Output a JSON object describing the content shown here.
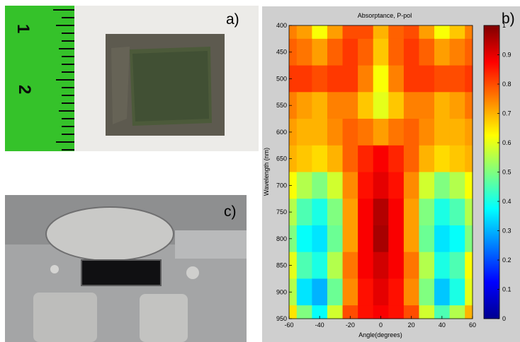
{
  "panels": {
    "a": {
      "label": "a)",
      "ruler_numbers": [
        "1",
        "2"
      ]
    },
    "b": {
      "label": "b)"
    },
    "c": {
      "label": "c)"
    }
  },
  "chart_data": {
    "type": "heatmap",
    "title": "Absorptance, P-pol",
    "xlabel": "Angle(degrees)",
    "ylabel": "Wavelength (nm)",
    "xlim": [
      -60,
      60
    ],
    "ylim": [
      400,
      950
    ],
    "x_ticks": [
      -60,
      -40,
      -20,
      0,
      20,
      40,
      60
    ],
    "y_ticks": [
      400,
      450,
      500,
      550,
      600,
      650,
      700,
      750,
      800,
      850,
      900,
      950
    ],
    "y_reversed": true,
    "colormap": "jet",
    "colorbar": {
      "range": [
        0,
        1
      ],
      "ticks": [
        "0",
        "0.1",
        "0.2",
        "0.3",
        "0.4",
        "0.5",
        "0.6",
        "0.7",
        "0.8",
        "0.9",
        "1"
      ]
    },
    "angles": [
      -60,
      -50,
      -40,
      -30,
      -20,
      -10,
      0,
      10,
      20,
      30,
      40,
      50,
      60
    ],
    "wavelengths": [
      400,
      450,
      500,
      550,
      600,
      650,
      700,
      750,
      800,
      850,
      900,
      950
    ],
    "values": [
      [
        0.75,
        0.72,
        0.62,
        0.72,
        0.8,
        0.8,
        0.7,
        0.78,
        0.8,
        0.72,
        0.62,
        0.68,
        0.75
      ],
      [
        0.78,
        0.76,
        0.72,
        0.78,
        0.82,
        0.78,
        0.68,
        0.78,
        0.82,
        0.78,
        0.72,
        0.75,
        0.78
      ],
      [
        0.82,
        0.82,
        0.8,
        0.82,
        0.82,
        0.75,
        0.62,
        0.75,
        0.82,
        0.82,
        0.8,
        0.8,
        0.82
      ],
      [
        0.75,
        0.72,
        0.7,
        0.75,
        0.75,
        0.68,
        0.6,
        0.68,
        0.75,
        0.75,
        0.7,
        0.72,
        0.76
      ],
      [
        0.72,
        0.7,
        0.7,
        0.74,
        0.78,
        0.76,
        0.72,
        0.76,
        0.78,
        0.74,
        0.7,
        0.7,
        0.72
      ],
      [
        0.7,
        0.68,
        0.66,
        0.7,
        0.78,
        0.84,
        0.88,
        0.84,
        0.78,
        0.7,
        0.66,
        0.68,
        0.7
      ],
      [
        0.62,
        0.55,
        0.5,
        0.58,
        0.74,
        0.86,
        0.9,
        0.86,
        0.74,
        0.58,
        0.5,
        0.55,
        0.62
      ],
      [
        0.55,
        0.45,
        0.4,
        0.5,
        0.72,
        0.88,
        0.95,
        0.88,
        0.72,
        0.5,
        0.4,
        0.45,
        0.55
      ],
      [
        0.5,
        0.38,
        0.35,
        0.48,
        0.72,
        0.88,
        0.96,
        0.88,
        0.72,
        0.48,
        0.35,
        0.38,
        0.5
      ],
      [
        0.6,
        0.45,
        0.4,
        0.55,
        0.76,
        0.88,
        0.92,
        0.88,
        0.76,
        0.55,
        0.4,
        0.45,
        0.62
      ],
      [
        0.55,
        0.35,
        0.3,
        0.48,
        0.74,
        0.86,
        0.9,
        0.86,
        0.74,
        0.5,
        0.32,
        0.4,
        0.6
      ],
      [
        0.65,
        0.5,
        0.38,
        0.58,
        0.8,
        0.86,
        0.88,
        0.86,
        0.8,
        0.58,
        0.45,
        0.55,
        0.7
      ]
    ]
  }
}
